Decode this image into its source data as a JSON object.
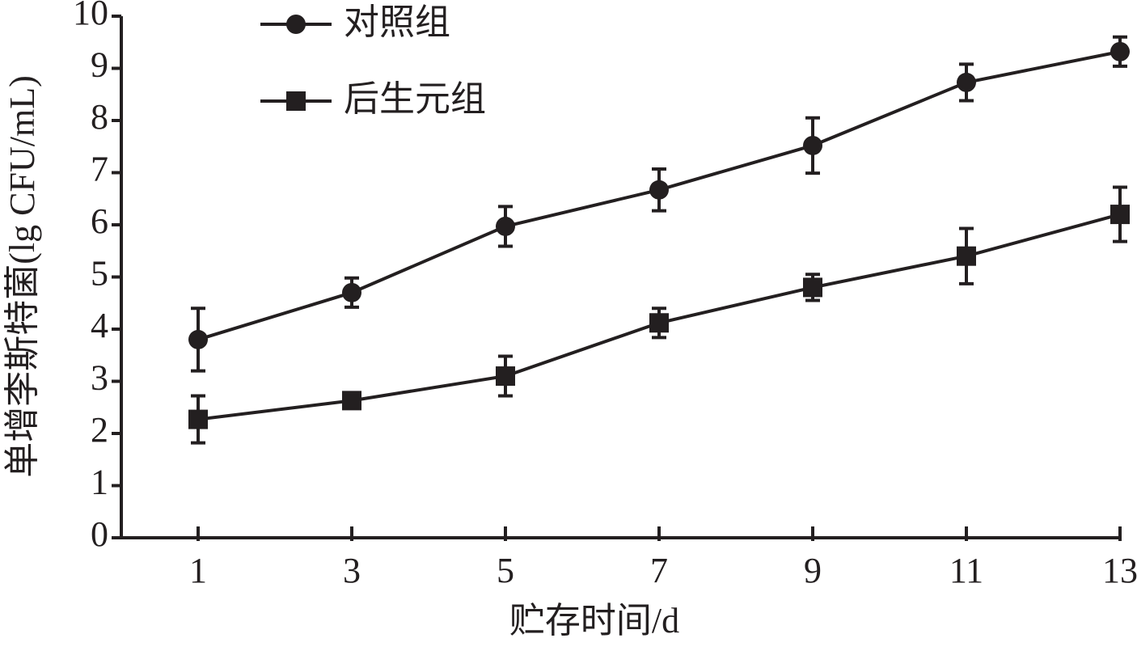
{
  "chart_data": {
    "type": "line",
    "xlabel": "贮存时间/d",
    "ylabel": "单增李斯特菌(lg CFU/mL)",
    "x": [
      1,
      3,
      5,
      7,
      9,
      11,
      13
    ],
    "series": [
      {
        "name": "对照组",
        "color": "#231f20",
        "marker": "circle",
        "values": [
          3.8,
          4.7,
          5.97,
          6.67,
          7.52,
          8.73,
          9.32
        ],
        "errors": [
          0.6,
          0.28,
          0.38,
          0.4,
          0.53,
          0.35,
          0.28
        ]
      },
      {
        "name": "后生元组",
        "color": "#231f20",
        "marker": "square",
        "values": [
          2.27,
          2.63,
          3.1,
          4.12,
          4.8,
          5.4,
          6.2
        ],
        "errors": [
          0.45,
          0.1,
          0.38,
          0.28,
          0.25,
          0.53,
          0.52
        ]
      }
    ],
    "xlim": [
      0,
      13
    ],
    "xticks": [
      1,
      3,
      5,
      7,
      9,
      11,
      13
    ],
    "ylim": [
      0,
      10
    ],
    "yticks": [
      0,
      1,
      2,
      3,
      4,
      5,
      6,
      7,
      8,
      9,
      10
    ],
    "legend": "upper left",
    "grid": false
  }
}
